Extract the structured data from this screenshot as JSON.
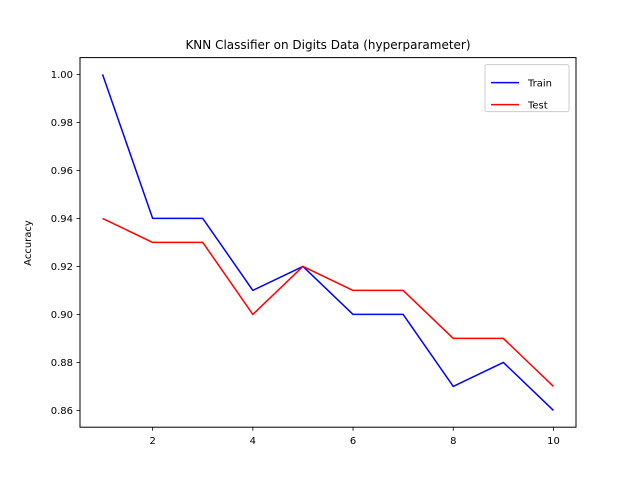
{
  "chart_data": {
    "type": "line",
    "title": "KNN Classifier on Digits Data (hyperparameter)",
    "xlabel": "",
    "ylabel": "Accuracy",
    "x": [
      1,
      2,
      3,
      4,
      5,
      6,
      7,
      8,
      9,
      10
    ],
    "xlim": [
      0.55,
      10.45
    ],
    "ylim": [
      0.853,
      1.007
    ],
    "xticks": [
      2,
      4,
      6,
      8,
      10
    ],
    "yticks": [
      0.86,
      0.88,
      0.9,
      0.92,
      0.94,
      0.96,
      0.98,
      1.0
    ],
    "ytick_labels": [
      "0.86",
      "0.88",
      "0.90",
      "0.92",
      "0.94",
      "0.96",
      "0.98",
      "1.00"
    ],
    "grid": false,
    "legend_position": "top-right",
    "series": [
      {
        "name": "Train",
        "color": "#0000ff",
        "values": [
          1.0,
          0.94,
          0.94,
          0.91,
          0.92,
          0.9,
          0.9,
          0.87,
          0.88,
          0.86
        ]
      },
      {
        "name": "Test",
        "color": "#ff0000",
        "values": [
          0.94,
          0.93,
          0.93,
          0.9,
          0.92,
          0.91,
          0.91,
          0.89,
          0.89,
          0.87
        ]
      }
    ]
  }
}
